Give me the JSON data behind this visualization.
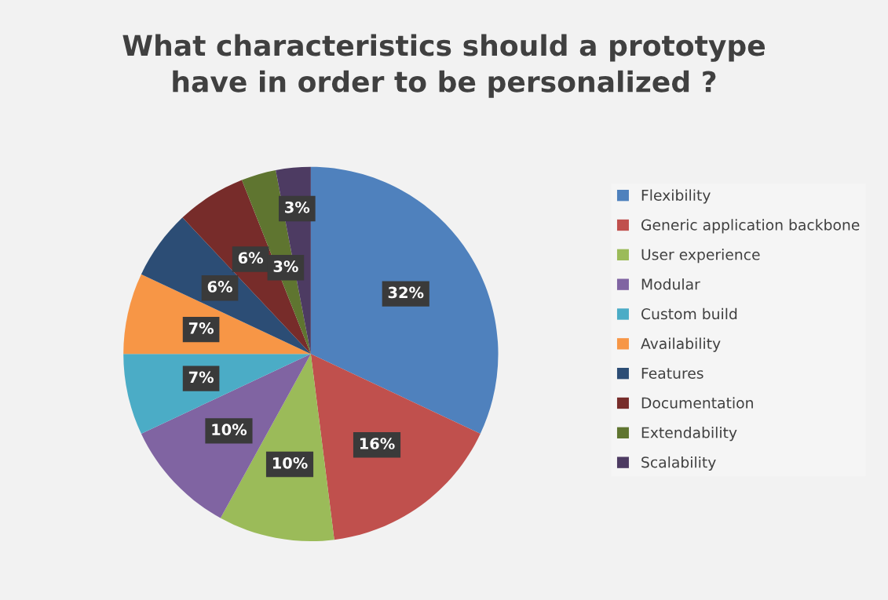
{
  "chart_data": {
    "type": "pie",
    "title": "What characteristics should a prototype\nhave in order to be personalized ?",
    "categories": [
      "Flexibility",
      "Generic application backbone",
      "User experience",
      "Modular",
      "Custom build",
      "Availability",
      "Features",
      "Documentation",
      "Extendability",
      "Scalability"
    ],
    "values": [
      32,
      16,
      10,
      10,
      7,
      7,
      6,
      6,
      3,
      3
    ],
    "colors": [
      "#4f81bd",
      "#c0504d",
      "#9bbb59",
      "#8064a2",
      "#4bacc6",
      "#f79646",
      "#2c4d75",
      "#772c2a",
      "#5f7530",
      "#4d3b62"
    ],
    "value_labels": [
      "32%",
      "16%",
      "10%",
      "10%",
      "7%",
      "7%",
      "6%",
      "6%",
      "3%",
      "3%"
    ],
    "legend": "right"
  }
}
